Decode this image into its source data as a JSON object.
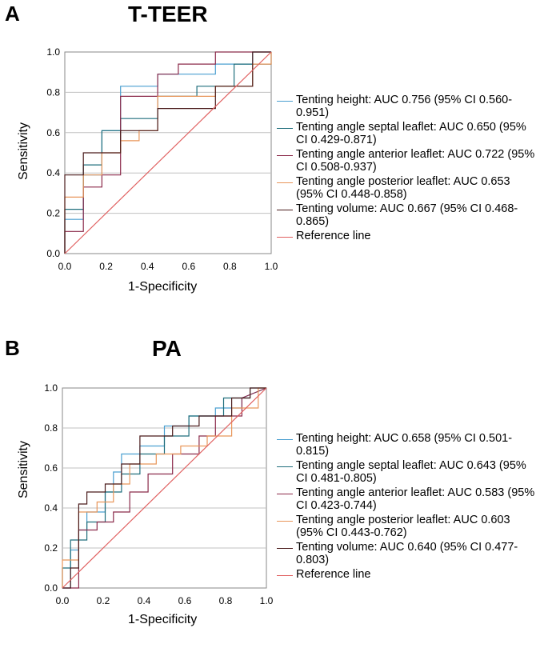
{
  "colors": {
    "tenting_height": "#4a9fd0",
    "septal": "#1f6e7c",
    "anterior": "#8b2a4a",
    "posterior": "#e8965a",
    "volume": "#4a1b1b",
    "reference": "#e06060",
    "grid": "#c0c0c0"
  },
  "chart_data": [
    {
      "type": "line",
      "panel_letter": "A",
      "title": "T-TEER",
      "xlabel": "1-Specificity",
      "ylabel": "Sensitivity",
      "xlim": [
        0,
        1
      ],
      "ylim": [
        0,
        1
      ],
      "grid": true,
      "legend_position": "right",
      "x_ticks": [
        {
          "value": 0,
          "label": "0.0"
        },
        {
          "value": 0.2,
          "label": "0.2"
        },
        {
          "value": 0.4,
          "label": "0.4"
        },
        {
          "value": 0.6,
          "label": "0.6"
        },
        {
          "value": 0.8,
          "label": "0.8"
        },
        {
          "value": 1.0,
          "label": "1.0"
        }
      ],
      "y_ticks": [
        {
          "value": 0,
          "label": "0.0"
        },
        {
          "value": 0.2,
          "label": "0.2"
        },
        {
          "value": 0.4,
          "label": "0.4"
        },
        {
          "value": 0.6,
          "label": "0.6"
        },
        {
          "value": 0.8,
          "label": "0.8"
        },
        {
          "value": 1.0,
          "label": "1.0"
        }
      ],
      "series": [
        {
          "name": "Tenting height: AUC 0.756 (95% CI 0.560-0.951)",
          "color_key": "tenting_height",
          "x": [
            0,
            0,
            0.09,
            0.09,
            0.18,
            0.18,
            0.27,
            0.27,
            0.36,
            0.36,
            0.45,
            0.45,
            0.64,
            0.64,
            0.73,
            0.73,
            0.91,
            0.91,
            1,
            1
          ],
          "y": [
            0,
            0.17,
            0.17,
            0.39,
            0.39,
            0.61,
            0.61,
            0.83,
            0.83,
            0.83,
            0.83,
            0.89,
            0.89,
            0.89,
            0.89,
            0.94,
            0.94,
            1,
            1,
            1
          ]
        },
        {
          "name": "Tenting angle septal leaflet: AUC 0.650 (95% CI 0.429-0.871)",
          "color_key": "septal",
          "x": [
            0,
            0,
            0.09,
            0.09,
            0.18,
            0.18,
            0.27,
            0.27,
            0.45,
            0.45,
            0.64,
            0.64,
            0.82,
            0.82,
            1,
            1
          ],
          "y": [
            0,
            0.22,
            0.22,
            0.44,
            0.44,
            0.61,
            0.61,
            0.67,
            0.67,
            0.78,
            0.78,
            0.83,
            0.83,
            0.94,
            0.94,
            1
          ]
        },
        {
          "name": "Tenting angle anterior leaflet: AUC 0.722 (95% CI 0.508-0.937)",
          "color_key": "anterior",
          "x": [
            0,
            0,
            0.09,
            0.09,
            0.18,
            0.18,
            0.27,
            0.27,
            0.36,
            0.36,
            0.45,
            0.45,
            0.55,
            0.55,
            0.73,
            0.73,
            1,
            1
          ],
          "y": [
            0,
            0.11,
            0.11,
            0.33,
            0.33,
            0.39,
            0.39,
            0.78,
            0.78,
            0.78,
            0.78,
            0.89,
            0.89,
            0.94,
            0.94,
            1,
            1,
            1
          ]
        },
        {
          "name": "Tenting angle posterior leaflet: AUC 0.653 (95% CI 0.448-0.858)",
          "color_key": "posterior",
          "x": [
            0,
            0,
            0.09,
            0.09,
            0.18,
            0.18,
            0.27,
            0.27,
            0.36,
            0.36,
            0.45,
            0.45,
            0.73,
            0.73,
            0.91,
            0.91,
            1,
            1
          ],
          "y": [
            0,
            0.28,
            0.28,
            0.39,
            0.39,
            0.5,
            0.5,
            0.56,
            0.56,
            0.61,
            0.61,
            0.78,
            0.78,
            0.83,
            0.83,
            0.94,
            0.94,
            1
          ]
        },
        {
          "name": "Tenting volume: AUC 0.667 (95% CI 0.468-0.865)",
          "color_key": "volume",
          "x": [
            0,
            0,
            0.09,
            0.09,
            0.27,
            0.27,
            0.36,
            0.36,
            0.45,
            0.45,
            0.55,
            0.55,
            0.73,
            0.73,
            0.91,
            0.91,
            1,
            1
          ],
          "y": [
            0,
            0.39,
            0.39,
            0.5,
            0.5,
            0.61,
            0.61,
            0.61,
            0.61,
            0.72,
            0.72,
            0.72,
            0.72,
            0.83,
            0.83,
            1,
            1,
            1
          ]
        },
        {
          "name": "Reference line",
          "color_key": "reference",
          "x": [
            0,
            1
          ],
          "y": [
            0,
            1
          ]
        }
      ]
    },
    {
      "type": "line",
      "panel_letter": "B",
      "title": "PA",
      "xlabel": "1-Specificity",
      "ylabel": "Sensitivity",
      "xlim": [
        0,
        1
      ],
      "ylim": [
        0,
        1
      ],
      "grid": true,
      "legend_position": "right",
      "x_ticks": [
        {
          "value": 0,
          "label": "0.0"
        },
        {
          "value": 0.2,
          "label": "0.2"
        },
        {
          "value": 0.4,
          "label": "0.4"
        },
        {
          "value": 0.6,
          "label": "0.6"
        },
        {
          "value": 0.8,
          "label": "0.8"
        },
        {
          "value": 1.0,
          "label": "1.0"
        }
      ],
      "y_ticks": [
        {
          "value": 0,
          "label": "0.0"
        },
        {
          "value": 0.2,
          "label": "0.2"
        },
        {
          "value": 0.4,
          "label": "0.4"
        },
        {
          "value": 0.6,
          "label": "0.6"
        },
        {
          "value": 0.8,
          "label": "0.8"
        },
        {
          "value": 1.0,
          "label": "1.0"
        }
      ],
      "series": [
        {
          "name": "Tenting height: AUC 0.658 (95% CI 0.501-0.815)",
          "color_key": "tenting_height",
          "x": [
            0,
            0.04,
            0.04,
            0.08,
            0.08,
            0.12,
            0.12,
            0.21,
            0.21,
            0.25,
            0.25,
            0.29,
            0.29,
            0.38,
            0.38,
            0.5,
            0.5,
            0.62,
            0.62,
            0.75,
            0.75,
            0.88,
            0.88,
            1
          ],
          "y": [
            0,
            0,
            0.19,
            0.19,
            0.29,
            0.29,
            0.38,
            0.38,
            0.48,
            0.48,
            0.58,
            0.58,
            0.67,
            0.67,
            0.71,
            0.71,
            0.81,
            0.81,
            0.86,
            0.86,
            0.9,
            0.9,
            0.95,
            1
          ]
        },
        {
          "name": "Tenting angle septal leaflet: AUC 0.643 (95% CI 0.481-0.805)",
          "color_key": "septal",
          "x": [
            0,
            0,
            0.04,
            0.04,
            0.12,
            0.12,
            0.21,
            0.21,
            0.29,
            0.29,
            0.38,
            0.38,
            0.5,
            0.5,
            0.62,
            0.62,
            0.79,
            0.79,
            0.92,
            0.92,
            1
          ],
          "y": [
            0,
            0.1,
            0.1,
            0.24,
            0.24,
            0.33,
            0.33,
            0.48,
            0.48,
            0.57,
            0.57,
            0.67,
            0.67,
            0.76,
            0.76,
            0.86,
            0.86,
            0.95,
            0.95,
            1,
            1
          ]
        },
        {
          "name": "Tenting angle anterior leaflet: AUC 0.583 (95% CI 0.423-0.744)",
          "color_key": "anterior",
          "x": [
            0,
            0.08,
            0.08,
            0.17,
            0.17,
            0.25,
            0.25,
            0.33,
            0.33,
            0.42,
            0.42,
            0.54,
            0.54,
            0.67,
            0.67,
            0.75,
            0.75,
            0.88,
            0.88,
            1
          ],
          "y": [
            0,
            0,
            0.29,
            0.29,
            0.33,
            0.33,
            0.38,
            0.38,
            0.48,
            0.48,
            0.57,
            0.57,
            0.67,
            0.67,
            0.76,
            0.76,
            0.86,
            0.86,
            0.95,
            1
          ]
        },
        {
          "name": "Tenting angle posterior leaflet: AUC 0.603 (95% CI 0.443-0.762)",
          "color_key": "posterior",
          "x": [
            0,
            0,
            0.08,
            0.08,
            0.17,
            0.17,
            0.25,
            0.25,
            0.33,
            0.33,
            0.46,
            0.46,
            0.58,
            0.58,
            0.71,
            0.71,
            0.83,
            0.83,
            0.96,
            0.96,
            1
          ],
          "y": [
            0,
            0.14,
            0.14,
            0.38,
            0.38,
            0.43,
            0.43,
            0.52,
            0.52,
            0.62,
            0.62,
            0.67,
            0.67,
            0.71,
            0.71,
            0.76,
            0.76,
            0.9,
            0.9,
            1,
            1
          ]
        },
        {
          "name": "Tenting volume: AUC 0.640 (95% CI 0.477-0.803)",
          "color_key": "volume",
          "x": [
            0,
            0.04,
            0.04,
            0.08,
            0.08,
            0.12,
            0.12,
            0.21,
            0.21,
            0.29,
            0.29,
            0.38,
            0.38,
            0.54,
            0.54,
            0.67,
            0.67,
            0.83,
            0.83,
            0.92,
            0.92,
            1
          ],
          "y": [
            0,
            0,
            0.1,
            0.1,
            0.42,
            0.42,
            0.48,
            0.48,
            0.52,
            0.52,
            0.62,
            0.62,
            0.76,
            0.76,
            0.81,
            0.81,
            0.86,
            0.86,
            0.95,
            0.95,
            1,
            1
          ]
        },
        {
          "name": "Reference line",
          "color_key": "reference",
          "x": [
            0,
            1
          ],
          "y": [
            0,
            1
          ]
        }
      ]
    }
  ]
}
